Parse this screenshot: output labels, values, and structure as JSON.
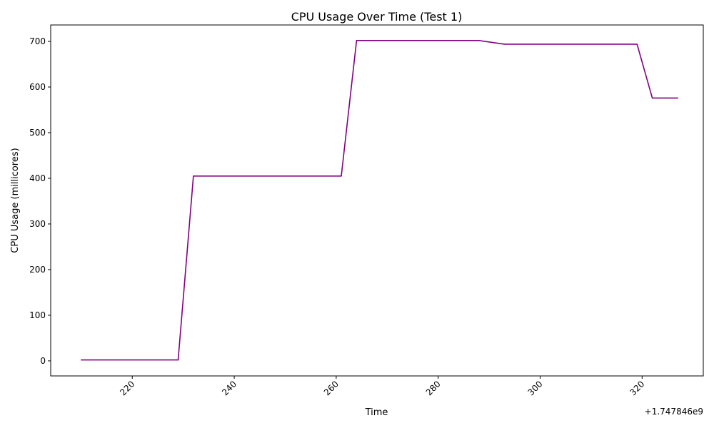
{
  "chart_data": {
    "type": "line",
    "title": "CPU Usage Over Time (Test 1)",
    "xlabel": "Time",
    "ylabel": "CPU Usage (millicores)",
    "x_offset_label": "+1.747846e9",
    "xlim": [
      204,
      332
    ],
    "ylim": [
      -33,
      736
    ],
    "x_ticks": [
      220,
      240,
      260,
      280,
      300,
      320
    ],
    "y_ticks": [
      0,
      100,
      200,
      300,
      400,
      500,
      600,
      700
    ],
    "grid": false,
    "legend": "none",
    "series": [
      {
        "color": "#800080",
        "x": [
          210,
          229,
          232,
          261,
          264,
          288,
          293,
          319,
          322,
          327
        ],
        "y": [
          2,
          2,
          405,
          405,
          702,
          702,
          694,
          694,
          576,
          576
        ]
      }
    ]
  }
}
